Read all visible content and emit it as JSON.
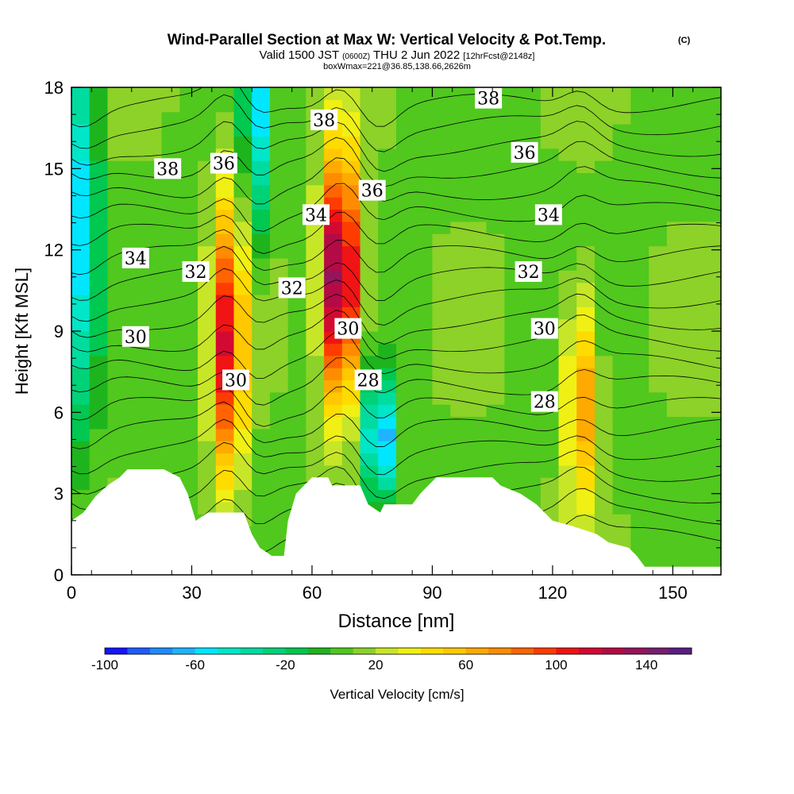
{
  "header": {
    "title": "Wind-Parallel Section at Max W: Vertical Velocity & Pot.Temp.",
    "title_mark": "(C)",
    "valid_prefix": "Valid 1500 JST",
    "valid_zulu": "(0600Z)",
    "valid_date": "THU 2 Jun 2022",
    "forecast": "[12hrFcst@2148z]",
    "box_info": "boxWmax=221@36.85,138.66,2626m"
  },
  "colorbar": {
    "label": "Vertical Velocity [cm/s]",
    "tick_labels": [
      "-100",
      "-60",
      "-20",
      "20",
      "60",
      "100",
      "140"
    ],
    "tick_values": [
      -100,
      -60,
      -20,
      20,
      60,
      100,
      140
    ],
    "range": [
      -100,
      160
    ],
    "step": 10,
    "colors": [
      "#1414ff",
      "#1e5cff",
      "#1e8cff",
      "#1eb4ff",
      "#00e6ff",
      "#00e6c8",
      "#00dca0",
      "#00d278",
      "#00c850",
      "#1eb41e",
      "#50c81e",
      "#8cd228",
      "#c8e628",
      "#f0f014",
      "#ffdc00",
      "#ffc800",
      "#ffaa00",
      "#ff8c00",
      "#ff6400",
      "#ff3c00",
      "#f01414",
      "#d20a32",
      "#b40a46",
      "#96145a",
      "#781e6e",
      "#5a1e82"
    ]
  },
  "chart_data": {
    "type": "heatmap",
    "xlabel": "Distance [nm]",
    "ylabel": "Height [Kft MSL]",
    "xlim": [
      0,
      162
    ],
    "ylim": [
      0,
      18
    ],
    "x_ticks": [
      0,
      30,
      60,
      90,
      120,
      150
    ],
    "y_ticks": [
      0,
      3,
      6,
      9,
      12,
      15,
      18
    ],
    "field": "Vertical velocity [cm/s]",
    "features": [
      {
        "kind": "updraft",
        "x": 39,
        "y": 8.5,
        "value": 110
      },
      {
        "kind": "updraft",
        "x": 67,
        "y": 11,
        "value": 155
      },
      {
        "kind": "updraft",
        "x": 127,
        "y": 6.5,
        "value": 75
      },
      {
        "kind": "downdraft",
        "x": 77,
        "y": 5,
        "value": -75
      },
      {
        "kind": "downdraft",
        "x": 3,
        "y": 13,
        "value": -60
      },
      {
        "kind": "downdraft",
        "x": 46,
        "y": 17,
        "value": -60
      }
    ],
    "terrain_kft": [
      [
        0,
        2
      ],
      [
        3,
        2.3
      ],
      [
        6,
        2.9
      ],
      [
        9,
        3.3
      ],
      [
        12,
        3.6
      ],
      [
        14,
        3.9
      ],
      [
        23,
        3.9
      ],
      [
        27,
        3.6
      ],
      [
        29,
        3
      ],
      [
        31,
        2
      ],
      [
        34,
        2.3
      ],
      [
        43,
        2.3
      ],
      [
        45,
        1.5
      ],
      [
        47,
        1
      ],
      [
        50,
        0.7
      ],
      [
        53,
        0.7
      ],
      [
        54,
        2
      ],
      [
        56,
        3
      ],
      [
        58,
        3.3
      ],
      [
        60,
        3.6
      ],
      [
        64,
        3.6
      ],
      [
        65,
        3.3
      ],
      [
        72,
        3.3
      ],
      [
        74,
        2.6
      ],
      [
        77,
        2.3
      ],
      [
        78,
        2.6
      ],
      [
        85,
        2.6
      ],
      [
        87,
        3
      ],
      [
        89,
        3.3
      ],
      [
        91,
        3.6
      ],
      [
        105,
        3.6
      ],
      [
        107,
        3.3
      ],
      [
        112,
        3
      ],
      [
        116,
        2.6
      ],
      [
        118,
        2.3
      ],
      [
        120,
        2
      ],
      [
        125,
        1.8
      ],
      [
        131,
        1.5
      ],
      [
        134,
        1.2
      ],
      [
        139,
        1
      ],
      [
        141,
        0.7
      ],
      [
        143,
        0.3
      ],
      [
        162,
        0.3
      ]
    ],
    "theta_contour_labels": [
      {
        "text": "38",
        "x": 24,
        "y": 15
      },
      {
        "text": "36",
        "x": 38,
        "y": 15.2
      },
      {
        "text": "38",
        "x": 63,
        "y": 16.8
      },
      {
        "text": "38",
        "x": 104,
        "y": 17.6
      },
      {
        "text": "36",
        "x": 75,
        "y": 14.2
      },
      {
        "text": "36",
        "x": 113,
        "y": 15.6
      },
      {
        "text": "34",
        "x": 16,
        "y": 11.7
      },
      {
        "text": "34",
        "x": 61,
        "y": 13.3
      },
      {
        "text": "34",
        "x": 119,
        "y": 13.3
      },
      {
        "text": "32",
        "x": 31,
        "y": 11.2
      },
      {
        "text": "32",
        "x": 55,
        "y": 10.6
      },
      {
        "text": "32",
        "x": 114,
        "y": 11.2
      },
      {
        "text": "30",
        "x": 16,
        "y": 8.8
      },
      {
        "text": "30",
        "x": 69,
        "y": 9.1
      },
      {
        "text": "30",
        "x": 118,
        "y": 9.1
      },
      {
        "text": "30",
        "x": 41,
        "y": 7.2
      },
      {
        "text": "28",
        "x": 74,
        "y": 7.2
      },
      {
        "text": "28",
        "x": 118,
        "y": 6.4
      }
    ]
  }
}
